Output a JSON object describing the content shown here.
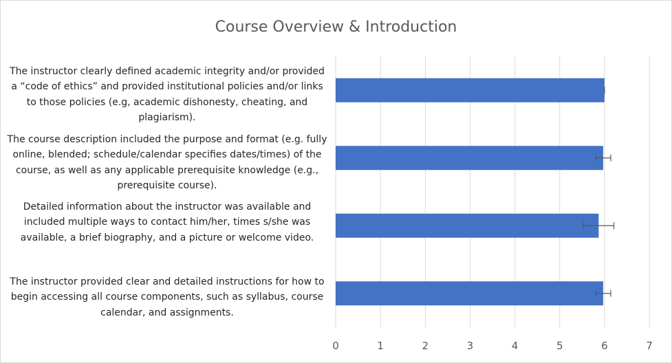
{
  "chart_data": {
    "type": "bar",
    "orientation": "horizontal",
    "title": "Course Overview & Introduction",
    "xlabel": "",
    "ylabel": "",
    "xlim": [
      0,
      7
    ],
    "x_ticks": [
      "0",
      "1",
      "2",
      "3",
      "4",
      "5",
      "6",
      "7"
    ],
    "grid": "vertical",
    "legend": "none",
    "bar_color": "#4472c4",
    "categories": [
      "The instructor clearly defined academic integrity and/or provided a “code of ethics” and provided institutional policies and/or links to those policies (e.g, academic dishonesty, cheating, and plagiarism).",
      "The course description included the purpose and format (e.g. fully online, blended; schedule/calendar specifies dates/times) of the course, as well as any applicable prerequisite knowledge (e.g., prerequisite course).",
      "Detailed information about the instructor was available and included multiple ways to contact him/her, times s/she was available, a brief biography, and a picture or welcome video.",
      "The instructor provided clear and detailed instructions for how to begin accessing all course components, such as syllabus, course calendar, and assignments."
    ],
    "values": [
      6.0,
      5.97,
      5.87,
      5.97
    ],
    "error": [
      0.0,
      0.17,
      0.34,
      0.17
    ]
  }
}
